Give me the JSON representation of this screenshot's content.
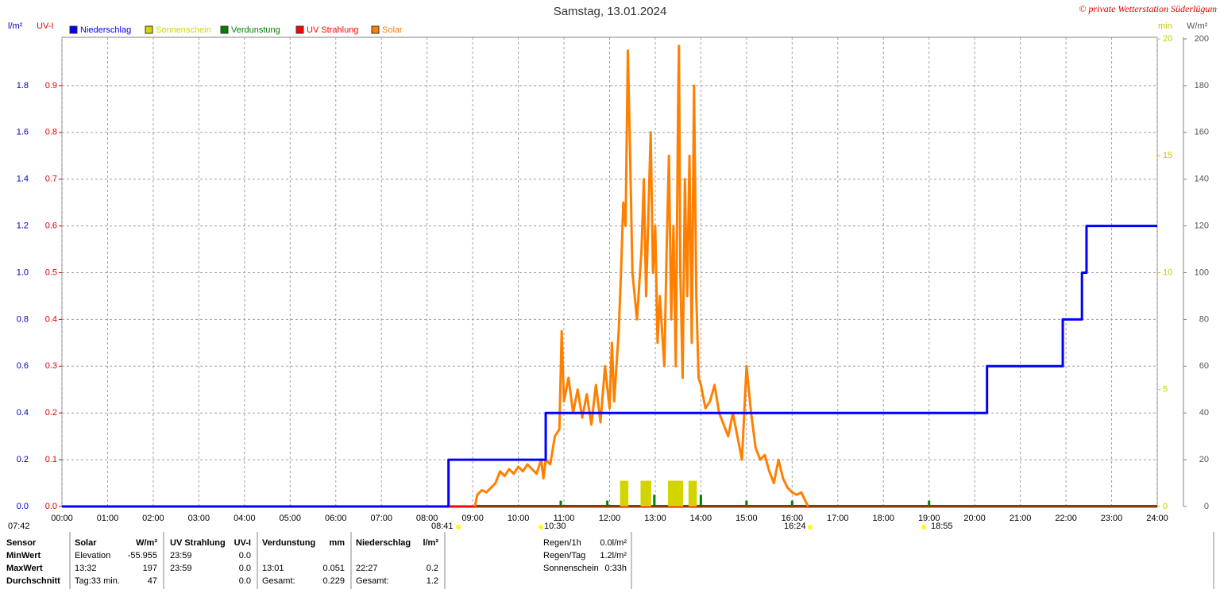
{
  "chart_data": {
    "type": "line",
    "title": "Samstag, 13.01.2024",
    "credit": "© private Wetterstation Süderlügum",
    "y_label": "l/m²",
    "uv_label": "UV-I",
    "y2_label": "min",
    "y3_label": "W/m²",
    "grid": true,
    "xlim": [
      0,
      24
    ],
    "xticks": [
      {
        "value": 0,
        "label": "00:00"
      },
      {
        "value": 1,
        "label": "01:00"
      },
      {
        "value": 2,
        "label": "02:00"
      },
      {
        "value": 3,
        "label": "03:00"
      },
      {
        "value": 4,
        "label": "04:00"
      },
      {
        "value": 5,
        "label": "05:00"
      },
      {
        "value": 6,
        "label": "06:00"
      },
      {
        "value": 7,
        "label": "07:00"
      },
      {
        "value": 8,
        "label": "08:00"
      },
      {
        "value": 9,
        "label": "09:00"
      },
      {
        "value": 10,
        "label": "10:00"
      },
      {
        "value": 11,
        "label": "11:00"
      },
      {
        "value": 12,
        "label": "12:00"
      },
      {
        "value": 13,
        "label": "13:00"
      },
      {
        "value": 14,
        "label": "14:00"
      },
      {
        "value": 15,
        "label": "15:00"
      },
      {
        "value": 16,
        "label": "16:00"
      },
      {
        "value": 17,
        "label": "17:00"
      },
      {
        "value": 18,
        "label": "18:00"
      },
      {
        "value": 19,
        "label": "19:00"
      },
      {
        "value": 20,
        "label": "20:00"
      },
      {
        "value": 21,
        "label": "21:00"
      },
      {
        "value": 22,
        "label": "22:00"
      },
      {
        "value": 23,
        "label": "23:00"
      },
      {
        "value": 24,
        "label": "24:00"
      }
    ],
    "ylim": [
      0,
      2
    ],
    "yticks": [
      {
        "value": 0,
        "label": "0.0"
      },
      {
        "value": 0.2,
        "label": "0.2"
      },
      {
        "value": 0.4,
        "label": "0.4"
      },
      {
        "value": 0.6,
        "label": "0.6"
      },
      {
        "value": 0.8,
        "label": "0.8"
      },
      {
        "value": 1,
        "label": "1.0"
      },
      {
        "value": 1.2,
        "label": "1.2"
      },
      {
        "value": 1.4,
        "label": "1.4"
      },
      {
        "value": 1.6,
        "label": "1.6"
      },
      {
        "value": 1.8,
        "label": "1.8"
      }
    ],
    "uvlim": [
      0,
      1
    ],
    "uvticks": [
      {
        "value": 0,
        "label": "0.0"
      },
      {
        "value": 0.1,
        "label": "0.1"
      },
      {
        "value": 0.2,
        "label": "0.2"
      },
      {
        "value": 0.3,
        "label": "0.3"
      },
      {
        "value": 0.4,
        "label": "0.4"
      },
      {
        "value": 0.5,
        "label": "0.5"
      },
      {
        "value": 0.6,
        "label": "0.6"
      },
      {
        "value": 0.7,
        "label": "0.7"
      },
      {
        "value": 0.8,
        "label": "0.8"
      },
      {
        "value": 0.9,
        "label": "0.9"
      }
    ],
    "y2lim": [
      0,
      20
    ],
    "y2ticks": [
      0,
      5,
      10,
      15,
      20
    ],
    "y3lim": [
      0,
      200
    ],
    "y3ticks": [
      0,
      20,
      40,
      60,
      80,
      100,
      120,
      140,
      160,
      180,
      200
    ],
    "series": [
      {
        "name": "Niederschlag",
        "color": "#0000ff",
        "axis": "y",
        "kind": "line",
        "x": [
          0,
          8.47,
          8.47,
          10.6,
          10.6,
          20.27,
          20.27,
          21.93,
          21.93,
          22.35,
          22.35,
          22.45,
          22.45,
          24
        ],
        "values": [
          0,
          0,
          0.2,
          0.2,
          0.4,
          0.4,
          0.6,
          0.6,
          0.8,
          0.8,
          1.0,
          1.0,
          1.2,
          1.2
        ]
      },
      {
        "name": "Sonnenschein",
        "color": "#d4d400",
        "axis": "y2",
        "kind": "bar",
        "x": [
          12.27,
          12.32,
          12.37,
          12.72,
          12.77,
          12.82,
          12.87,
          13.32,
          13.37,
          13.42,
          13.47,
          13.52,
          13.57,
          13.77,
          13.82,
          13.87
        ],
        "values": [
          1.1,
          1.1,
          1.1,
          1.1,
          1.1,
          1.1,
          1.1,
          1.1,
          1.1,
          1.1,
          1.1,
          1.1,
          1.1,
          1.1,
          1.1,
          1.1
        ]
      },
      {
        "name": "Verdunstung",
        "color": "#008000",
        "axis": "y",
        "kind": "spike",
        "x": [
          10.93,
          11.95,
          12.98,
          14.0,
          15.0,
          16.0,
          19.0
        ],
        "values": [
          0.025,
          0.025,
          0.05,
          0.05,
          0.025,
          0.025,
          0.025
        ]
      },
      {
        "name": "UV Strahlung",
        "color": "#ff0000",
        "axis": "uv",
        "kind": "line",
        "x": [
          0,
          24
        ],
        "values": [
          0,
          0
        ]
      },
      {
        "name": "Solar",
        "color": "#ff8000",
        "axis": "y3",
        "kind": "line",
        "x": [
          9.05,
          9.1,
          9.2,
          9.3,
          9.5,
          9.6,
          9.7,
          9.8,
          9.9,
          10.0,
          10.1,
          10.2,
          10.3,
          10.4,
          10.5,
          10.55,
          10.6,
          10.7,
          10.8,
          10.9,
          10.95,
          11.0,
          11.1,
          11.2,
          11.3,
          11.4,
          11.5,
          11.6,
          11.7,
          11.8,
          11.9,
          12.0,
          12.05,
          12.1,
          12.2,
          12.25,
          12.3,
          12.35,
          12.4,
          12.45,
          12.5,
          12.6,
          12.7,
          12.75,
          12.8,
          12.9,
          12.95,
          13.0,
          13.05,
          13.1,
          13.2,
          13.25,
          13.3,
          13.35,
          13.4,
          13.45,
          13.5,
          13.52,
          13.55,
          13.6,
          13.65,
          13.7,
          13.75,
          13.8,
          13.85,
          13.9,
          13.95,
          14.0,
          14.1,
          14.2,
          14.3,
          14.4,
          14.5,
          14.6,
          14.7,
          14.8,
          14.9,
          15.0,
          15.05,
          15.1,
          15.2,
          15.3,
          15.4,
          15.5,
          15.6,
          15.7,
          15.8,
          15.9,
          16.0,
          16.1,
          16.2,
          16.3,
          16.35
        ],
        "values": [
          0,
          5,
          7,
          6,
          10,
          15,
          13,
          16,
          14,
          17,
          15,
          18,
          16,
          14,
          20,
          12,
          20,
          18,
          30,
          33,
          75,
          45,
          55,
          40,
          50,
          38,
          48,
          35,
          52,
          36,
          60,
          42,
          70,
          45,
          75,
          100,
          130,
          120,
          195,
          150,
          100,
          80,
          110,
          140,
          90,
          160,
          100,
          120,
          70,
          90,
          60,
          110,
          150,
          80,
          120,
          60,
          170,
          197,
          100,
          55,
          140,
          90,
          150,
          70,
          180,
          90,
          55,
          52,
          42,
          45,
          52,
          40,
          35,
          30,
          40,
          30,
          20,
          60,
          50,
          40,
          25,
          20,
          22,
          15,
          10,
          20,
          12,
          8,
          6,
          5,
          6,
          2,
          0
        ]
      }
    ],
    "annotations": [
      "07:42",
      "08:41",
      "10:30",
      "16:24",
      "18:55"
    ]
  },
  "stats_table": {
    "rows": [
      [
        "Sensor",
        "Solar",
        "W/m²",
        "UV Strahlung",
        "UV-I",
        "Verdunstung",
        "mm",
        "Niederschlag",
        "l/m²"
      ],
      [
        "MinWert",
        "Elevation",
        "-55.955",
        "23:59",
        "0.0",
        null,
        null,
        null,
        null
      ],
      [
        "MaxWert",
        "13:32",
        "197",
        "23:59",
        "0.0",
        "13:01",
        "0.051",
        "22:27",
        "0.2"
      ],
      [
        "Durchschnitt",
        "Tag:33 min.",
        "47",
        null,
        "0.0",
        "Gesamt:",
        "0.229",
        "Gesamt:",
        "1.2"
      ]
    ]
  },
  "summary": {
    "rows": [
      [
        "Regen/1h",
        "0.0l/m²"
      ],
      [
        "Regen/Tag",
        "1.2l/m²"
      ],
      [
        "Sonnenschein",
        "0:33h"
      ]
    ]
  }
}
